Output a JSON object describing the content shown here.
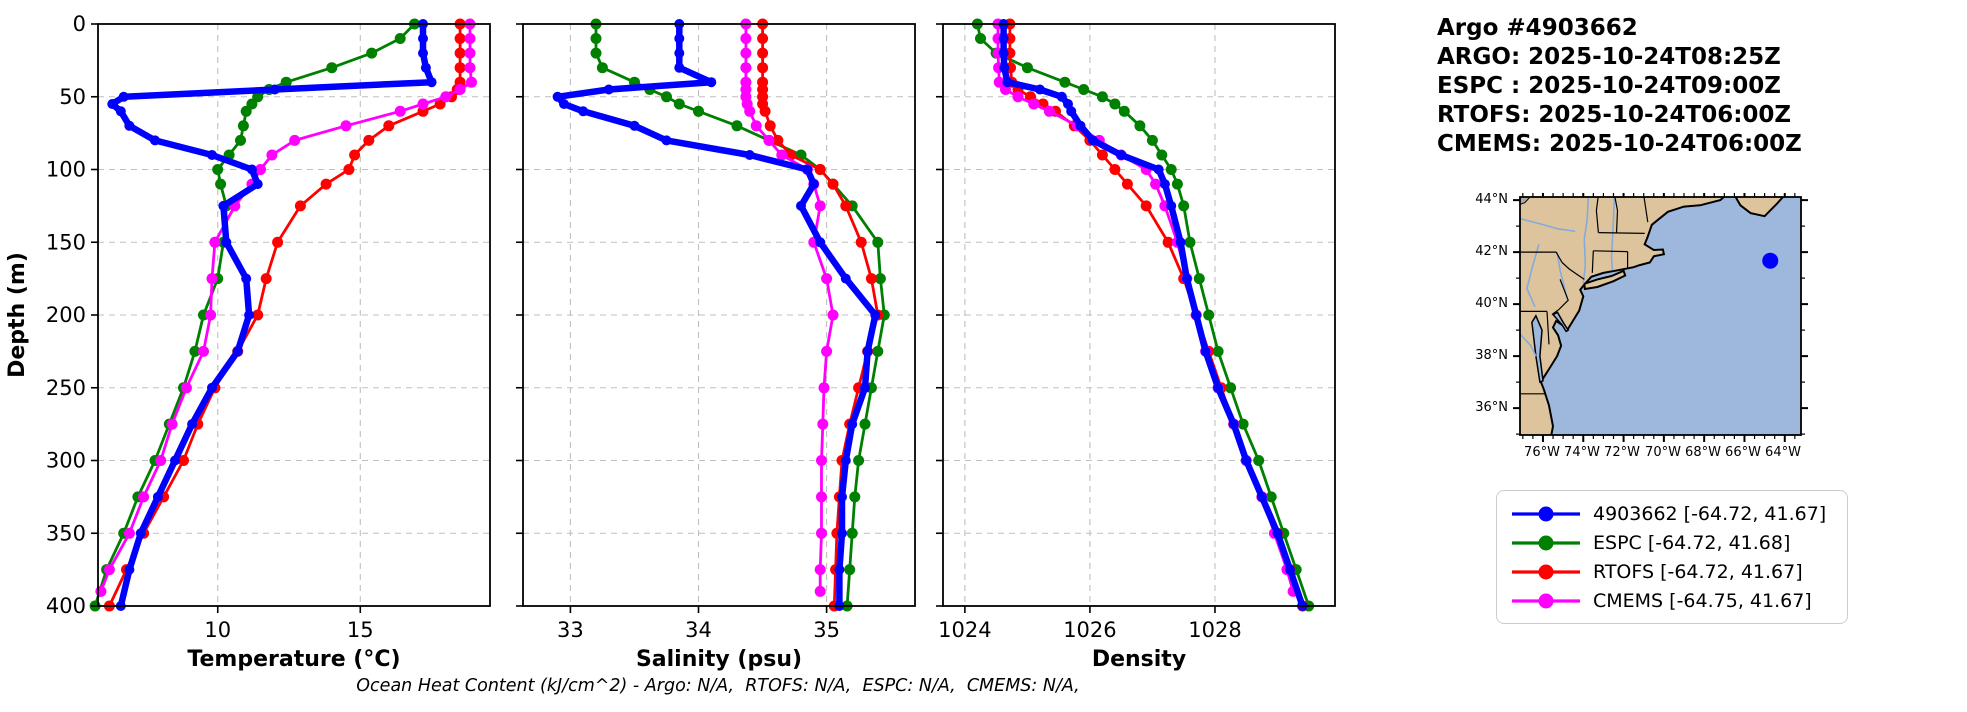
{
  "header": {
    "title_lines": [
      "Argo #4903662",
      "ARGO: 2025-10-24T08:25Z",
      "ESPC : 2025-10-24T09:00Z",
      "RTOFS: 2025-10-24T06:00Z",
      "CMEMS: 2025-10-24T06:00Z"
    ]
  },
  "colors": {
    "argo": "#0000ff",
    "espc": "#008000",
    "rtofs": "#ff0000",
    "cmems": "#ff00ff",
    "land": "#ddc49c",
    "water": "#9db8dc",
    "river": "#85abdb",
    "lake_gray": "#a8a8a8",
    "grid": "#bfbfbf",
    "spine": "#000000"
  },
  "map": {
    "lat_labels": [
      "44°N",
      "42°N",
      "40°N",
      "38°N",
      "36°N"
    ],
    "lon_labels": [
      "76°W",
      "74°W",
      "72°W",
      "70°W",
      "68°W",
      "66°W",
      "64°W"
    ],
    "marker": {
      "lon": -64.72,
      "lat": 41.67,
      "color": "#0000ff"
    }
  },
  "legend": {
    "items": [
      {
        "label": "4903662 [-64.72, 41.67]",
        "color": "#0000ff"
      },
      {
        "label": "ESPC [-64.72, 41.68]",
        "color": "#008000"
      },
      {
        "label": "RTOFS [-64.72, 41.67]",
        "color": "#ff0000"
      },
      {
        "label": "CMEMS [-64.75, 41.67]",
        "color": "#ff00ff"
      }
    ]
  },
  "footer": {
    "ohc_text": "Ocean Heat Content (kJ/cm^2) - Argo: N/A,  RTOFS: N/A,  ESPC: N/A,  CMEMS: N/A,"
  },
  "chart_data": [
    {
      "type": "line",
      "xlabel": "Temperature (°C)",
      "ylabel": "Depth (m)",
      "xlim": [
        5.8,
        19.55
      ],
      "xticks": [
        10,
        15
      ],
      "ylim": [
        0,
        400
      ],
      "yticks": [
        0,
        50,
        100,
        150,
        200,
        250,
        300,
        350,
        400
      ],
      "y_inverted": true,
      "grid": true,
      "series": [
        {
          "name": "4903662",
          "color": "#0000ff",
          "depths": [
            0,
            10,
            20,
            30,
            40,
            45,
            50,
            55,
            60,
            70,
            80,
            90,
            100,
            110,
            125,
            150,
            175,
            200,
            225,
            250,
            275,
            300,
            325,
            350,
            375,
            400
          ],
          "values": [
            17.2,
            17.2,
            17.2,
            17.3,
            17.5,
            12.0,
            6.7,
            6.3,
            6.6,
            6.9,
            7.8,
            9.8,
            11.2,
            11.4,
            10.2,
            10.3,
            11.0,
            11.1,
            10.7,
            9.8,
            9.1,
            8.5,
            7.9,
            7.3,
            6.9,
            6.6
          ]
        },
        {
          "name": "ESPC",
          "color": "#008000",
          "depths": [
            0,
            10,
            20,
            30,
            40,
            45,
            50,
            55,
            60,
            70,
            80,
            90,
            100,
            110,
            125,
            150,
            175,
            200,
            225,
            250,
            275,
            300,
            325,
            350,
            375,
            400
          ],
          "values": [
            16.9,
            16.4,
            15.4,
            14.0,
            12.4,
            11.8,
            11.4,
            11.2,
            11.0,
            10.9,
            10.8,
            10.4,
            10.0,
            10.1,
            10.3,
            10.2,
            10.0,
            9.5,
            9.2,
            8.8,
            8.3,
            7.8,
            7.2,
            6.7,
            6.1,
            5.7
          ]
        },
        {
          "name": "RTOFS",
          "color": "#ff0000",
          "depths": [
            0,
            10,
            20,
            30,
            40,
            45,
            50,
            55,
            60,
            70,
            80,
            90,
            100,
            110,
            125,
            150,
            175,
            200,
            225,
            250,
            275,
            300,
            325,
            350,
            375,
            400
          ],
          "values": [
            18.5,
            18.5,
            18.5,
            18.5,
            18.5,
            18.4,
            18.2,
            17.8,
            17.2,
            16.0,
            15.3,
            14.8,
            14.6,
            13.8,
            12.9,
            12.1,
            11.7,
            11.4,
            10.7,
            9.9,
            9.3,
            8.8,
            8.1,
            7.4,
            6.8,
            6.2
          ]
        },
        {
          "name": "CMEMS",
          "color": "#ff00ff",
          "depths": [
            0,
            10,
            20,
            30,
            40,
            45,
            50,
            55,
            60,
            70,
            80,
            90,
            100,
            110,
            125,
            150,
            175,
            200,
            225,
            250,
            275,
            300,
            325,
            350,
            375,
            390
          ],
          "values": [
            18.85,
            18.85,
            18.85,
            18.85,
            18.9,
            18.5,
            18.0,
            17.2,
            16.4,
            14.5,
            12.7,
            11.9,
            11.5,
            11.2,
            10.6,
            9.9,
            9.8,
            9.75,
            9.5,
            8.9,
            8.4,
            8.0,
            7.4,
            6.9,
            6.2,
            5.9
          ]
        }
      ]
    },
    {
      "type": "line",
      "xlabel": "Salinity (psu)",
      "ylabel": "Depth (m)",
      "xlim": [
        32.63,
        35.69
      ],
      "xticks": [
        33,
        34,
        35
      ],
      "ylim": [
        0,
        400
      ],
      "yticks": [
        0,
        50,
        100,
        150,
        200,
        250,
        300,
        350,
        400
      ],
      "y_inverted": true,
      "grid": true,
      "series": [
        {
          "name": "4903662",
          "color": "#0000ff",
          "depths": [
            0,
            10,
            20,
            30,
            40,
            45,
            50,
            55,
            60,
            70,
            80,
            90,
            100,
            110,
            125,
            150,
            175,
            200,
            225,
            250,
            275,
            300,
            325,
            350,
            375,
            400
          ],
          "values": [
            33.85,
            33.85,
            33.85,
            33.85,
            34.1,
            33.3,
            32.9,
            32.95,
            33.1,
            33.5,
            33.75,
            34.4,
            34.85,
            34.9,
            34.8,
            34.95,
            35.15,
            35.38,
            35.32,
            35.3,
            35.2,
            35.15,
            35.12,
            35.12,
            35.1,
            35.1
          ]
        },
        {
          "name": "ESPC",
          "color": "#008000",
          "depths": [
            0,
            10,
            20,
            30,
            40,
            45,
            50,
            55,
            60,
            70,
            80,
            90,
            100,
            110,
            125,
            150,
            175,
            200,
            225,
            250,
            275,
            300,
            325,
            350,
            375,
            400
          ],
          "values": [
            33.2,
            33.2,
            33.2,
            33.25,
            33.5,
            33.62,
            33.75,
            33.85,
            34.0,
            34.3,
            34.55,
            34.8,
            34.95,
            35.05,
            35.2,
            35.4,
            35.42,
            35.45,
            35.4,
            35.35,
            35.3,
            35.25,
            35.22,
            35.2,
            35.18,
            35.16
          ]
        },
        {
          "name": "RTOFS",
          "color": "#ff0000",
          "depths": [
            0,
            10,
            20,
            30,
            40,
            45,
            50,
            55,
            60,
            70,
            80,
            90,
            100,
            110,
            125,
            150,
            175,
            200,
            225,
            250,
            275,
            300,
            325,
            350,
            375,
            400
          ],
          "values": [
            34.5,
            34.5,
            34.5,
            34.5,
            34.5,
            34.5,
            34.5,
            34.5,
            34.52,
            34.56,
            34.62,
            34.72,
            34.95,
            35.05,
            35.15,
            35.27,
            35.35,
            35.4,
            35.32,
            35.25,
            35.18,
            35.12,
            35.1,
            35.08,
            35.07,
            35.06
          ]
        },
        {
          "name": "CMEMS",
          "color": "#ff00ff",
          "depths": [
            0,
            10,
            20,
            30,
            40,
            45,
            50,
            55,
            60,
            70,
            80,
            90,
            100,
            110,
            125,
            150,
            175,
            200,
            225,
            250,
            275,
            300,
            325,
            350,
            375,
            390
          ],
          "values": [
            34.37,
            34.37,
            34.37,
            34.37,
            34.37,
            34.37,
            34.37,
            34.38,
            34.4,
            34.45,
            34.55,
            34.65,
            34.85,
            34.9,
            34.95,
            34.9,
            35.0,
            35.05,
            35.0,
            34.98,
            34.97,
            34.96,
            34.96,
            34.96,
            34.95,
            34.95
          ]
        }
      ]
    },
    {
      "type": "line",
      "xlabel": "Density",
      "ylabel": "Depth (m)",
      "xlim": [
        1023.65,
        1029.92
      ],
      "xticks": [
        1024,
        1026,
        1028
      ],
      "ylim": [
        0,
        400
      ],
      "yticks": [
        0,
        50,
        100,
        150,
        200,
        250,
        300,
        350,
        400
      ],
      "y_inverted": true,
      "grid": true,
      "series": [
        {
          "name": "4903662",
          "color": "#0000ff",
          "depths": [
            0,
            10,
            20,
            30,
            40,
            45,
            50,
            55,
            60,
            70,
            80,
            90,
            100,
            110,
            125,
            150,
            175,
            200,
            225,
            250,
            275,
            300,
            325,
            350,
            375,
            400
          ],
          "values": [
            1024.62,
            1024.62,
            1024.62,
            1024.63,
            1024.68,
            1025.2,
            1025.55,
            1025.65,
            1025.7,
            1025.85,
            1026.05,
            1026.5,
            1027.1,
            1027.2,
            1027.3,
            1027.45,
            1027.55,
            1027.7,
            1027.85,
            1028.05,
            1028.3,
            1028.5,
            1028.75,
            1029.0,
            1029.2,
            1029.4
          ]
        },
        {
          "name": "ESPC",
          "color": "#008000",
          "depths": [
            0,
            10,
            20,
            30,
            40,
            45,
            50,
            55,
            60,
            70,
            80,
            90,
            100,
            110,
            125,
            150,
            175,
            200,
            225,
            250,
            275,
            300,
            325,
            350,
            375,
            400
          ],
          "values": [
            1024.2,
            1024.25,
            1024.5,
            1025.0,
            1025.6,
            1025.9,
            1026.2,
            1026.4,
            1026.55,
            1026.8,
            1027.0,
            1027.15,
            1027.3,
            1027.4,
            1027.5,
            1027.6,
            1027.75,
            1027.9,
            1028.05,
            1028.25,
            1028.45,
            1028.7,
            1028.9,
            1029.1,
            1029.3,
            1029.5
          ]
        },
        {
          "name": "RTOFS",
          "color": "#ff0000",
          "depths": [
            0,
            10,
            20,
            30,
            40,
            45,
            50,
            55,
            60,
            70,
            80,
            90,
            100,
            110,
            125,
            150,
            175,
            200,
            225,
            250,
            275,
            300,
            325,
            350,
            375,
            400
          ],
          "values": [
            1024.72,
            1024.72,
            1024.72,
            1024.73,
            1024.75,
            1024.85,
            1025.05,
            1025.25,
            1025.45,
            1025.75,
            1026.0,
            1026.2,
            1026.4,
            1026.6,
            1026.9,
            1027.25,
            1027.5,
            1027.7,
            1027.9,
            1028.1,
            1028.3,
            1028.5,
            1028.75,
            1029.0,
            1029.2,
            1029.4
          ]
        },
        {
          "name": "CMEMS",
          "color": "#ff00ff",
          "depths": [
            0,
            10,
            20,
            30,
            40,
            45,
            50,
            55,
            60,
            70,
            80,
            90,
            100,
            110,
            125,
            150,
            175,
            200,
            225,
            250,
            275,
            300,
            325,
            350,
            375,
            390
          ],
          "values": [
            1024.53,
            1024.53,
            1024.53,
            1024.54,
            1024.55,
            1024.65,
            1024.85,
            1025.1,
            1025.35,
            1025.8,
            1026.15,
            1026.5,
            1026.9,
            1027.05,
            1027.2,
            1027.4,
            1027.55,
            1027.7,
            1027.85,
            1028.05,
            1028.3,
            1028.5,
            1028.75,
            1028.95,
            1029.15,
            1029.25
          ]
        }
      ]
    }
  ]
}
